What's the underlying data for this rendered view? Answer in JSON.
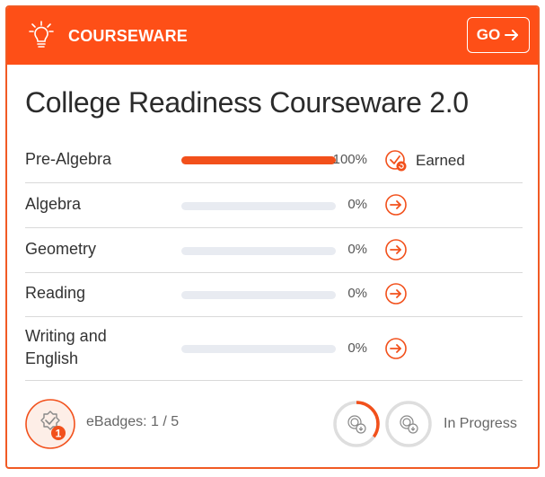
{
  "header": {
    "section_label": "COURSEWARE",
    "go_label": "GO",
    "accent": "#fe4f17"
  },
  "title": "College Readiness Courseware 2.0",
  "courses": [
    {
      "name": "Pre-Algebra",
      "progress_pct": 100,
      "percent_text": "100%",
      "status_icon": "earned-badge-icon",
      "status_text": "Earned"
    },
    {
      "name": "Algebra",
      "progress_pct": 0,
      "percent_text": "0%",
      "status_icon": "arrow-right-circle-icon"
    },
    {
      "name": "Geometry",
      "progress_pct": 0,
      "percent_text": "0%",
      "status_icon": "arrow-right-circle-icon"
    },
    {
      "name": "Reading",
      "progress_pct": 0,
      "percent_text": "0%",
      "status_icon": "arrow-right-circle-icon"
    },
    {
      "name": "Writing and English",
      "name_line1": "Writing and",
      "name_line2": "English",
      "progress_pct": 0,
      "percent_text": "0%",
      "status_icon": "arrow-right-circle-icon"
    }
  ],
  "footer": {
    "ebadges_text": "eBadges: 1 / 5",
    "badge_count": "1",
    "in_progress_text": "In Progress",
    "in_progress_fraction": 0.35
  }
}
